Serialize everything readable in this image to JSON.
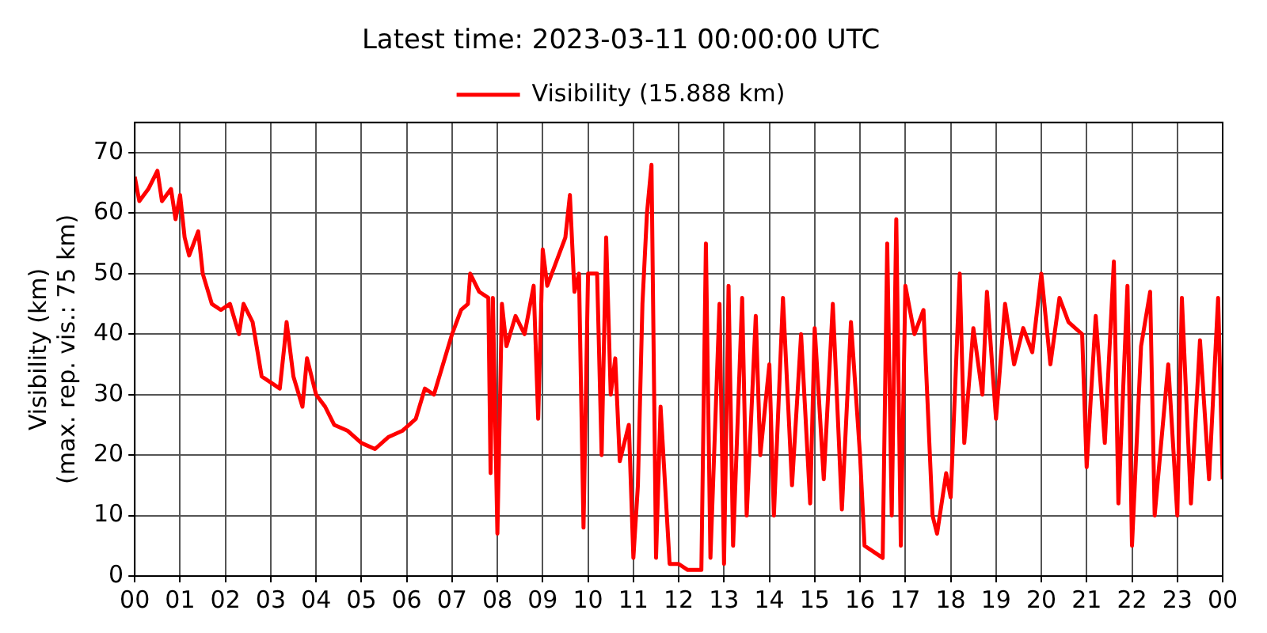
{
  "chart_data": {
    "type": "line",
    "title": "Latest time: 2023-03-11 00:00:00 UTC",
    "ylabel": "Visibility (km)\n(max. rep. vis.: 75 km)",
    "xlim": [
      0,
      24
    ],
    "ylim": [
      0,
      75
    ],
    "xticks": [
      {
        "value": 0,
        "label": "00"
      },
      {
        "value": 1,
        "label": "01"
      },
      {
        "value": 2,
        "label": "02"
      },
      {
        "value": 3,
        "label": "03"
      },
      {
        "value": 4,
        "label": "04"
      },
      {
        "value": 5,
        "label": "05"
      },
      {
        "value": 6,
        "label": "06"
      },
      {
        "value": 7,
        "label": "07"
      },
      {
        "value": 8,
        "label": "08"
      },
      {
        "value": 9,
        "label": "09"
      },
      {
        "value": 10,
        "label": "10"
      },
      {
        "value": 11,
        "label": "11"
      },
      {
        "value": 12,
        "label": "12"
      },
      {
        "value": 13,
        "label": "13"
      },
      {
        "value": 14,
        "label": "14"
      },
      {
        "value": 15,
        "label": "15"
      },
      {
        "value": 16,
        "label": "16"
      },
      {
        "value": 17,
        "label": "17"
      },
      {
        "value": 18,
        "label": "18"
      },
      {
        "value": 19,
        "label": "19"
      },
      {
        "value": 20,
        "label": "20"
      },
      {
        "value": 21,
        "label": "21"
      },
      {
        "value": 22,
        "label": "22"
      },
      {
        "value": 23,
        "label": "23"
      },
      {
        "value": 24,
        "label": "00"
      }
    ],
    "yticks": [
      0,
      10,
      20,
      30,
      40,
      50,
      60,
      70
    ],
    "grid": true,
    "legend": "top",
    "marker": "none",
    "line_style": "solid",
    "x": [
      0,
      0.1,
      0.3,
      0.5,
      0.6,
      0.8,
      0.9,
      1.0,
      1.1,
      1.2,
      1.4,
      1.5,
      1.7,
      1.9,
      2.1,
      2.3,
      2.4,
      2.6,
      2.8,
      3.0,
      3.2,
      3.3,
      3.35,
      3.5,
      3.7,
      3.8,
      4.0,
      4.2,
      4.4,
      4.7,
      5.0,
      5.3,
      5.6,
      5.9,
      6.2,
      6.4,
      6.6,
      6.8,
      7.0,
      7.2,
      7.35,
      7.4,
      7.6,
      7.8,
      7.85,
      7.9,
      8.0,
      8.1,
      8.2,
      8.4,
      8.6,
      8.8,
      8.9,
      9.0,
      9.1,
      9.3,
      9.5,
      9.6,
      9.7,
      9.8,
      9.9,
      10.0,
      10.2,
      10.3,
      10.4,
      10.5,
      10.6,
      10.7,
      10.9,
      11.0,
      11.1,
      11.2,
      11.3,
      11.4,
      11.5,
      11.6,
      11.8,
      12.0,
      12.2,
      12.5,
      12.6,
      12.7,
      12.9,
      13.0,
      13.1,
      13.2,
      13.4,
      13.5,
      13.7,
      13.8,
      14.0,
      14.1,
      14.3,
      14.5,
      14.7,
      14.9,
      15.0,
      15.2,
      15.4,
      15.6,
      15.8,
      16.0,
      16.1,
      16.3,
      16.5,
      16.6,
      16.7,
      16.8,
      16.9,
      17.0,
      17.2,
      17.4,
      17.6,
      17.7,
      17.9,
      18.0,
      18.2,
      18.3,
      18.5,
      18.7,
      18.8,
      19.0,
      19.2,
      19.4,
      19.6,
      19.8,
      20.0,
      20.2,
      20.4,
      20.6,
      20.9,
      21.0,
      21.2,
      21.4,
      21.6,
      21.7,
      21.9,
      22.0,
      22.2,
      22.4,
      22.5,
      22.8,
      23.0,
      23.1,
      23.3,
      23.5,
      23.7,
      23.9,
      24.0
    ],
    "series": [
      {
        "name": "Visibility (15.888 km)",
        "color": "#ff0000",
        "values": [
          66,
          62,
          64,
          67,
          62,
          64,
          59,
          63,
          56,
          53,
          57,
          50,
          45,
          44,
          45,
          40,
          45,
          42,
          33,
          32,
          31,
          38,
          42,
          33,
          28,
          36,
          30,
          28,
          25,
          24,
          22,
          21,
          23,
          24,
          26,
          31,
          30,
          35,
          40,
          44,
          45,
          50,
          47,
          46,
          17,
          46,
          7,
          45,
          38,
          43,
          40,
          48,
          26,
          54,
          48,
          52,
          56,
          63,
          47,
          50,
          8,
          50,
          50,
          20,
          56,
          30,
          36,
          19,
          25,
          3,
          15,
          45,
          60,
          68,
          3,
          28,
          2,
          2,
          1,
          1,
          55,
          3,
          45,
          2,
          48,
          5,
          46,
          10,
          43,
          20,
          35,
          10,
          46,
          15,
          40,
          12,
          41,
          16,
          45,
          11,
          42,
          20,
          5,
          4,
          3,
          55,
          10,
          59,
          5,
          48,
          40,
          44,
          10,
          7,
          17,
          13,
          50,
          22,
          41,
          30,
          47,
          26,
          45,
          35,
          41,
          37,
          50,
          35,
          46,
          42,
          40,
          18,
          43,
          22,
          52,
          12,
          48,
          5,
          38,
          47,
          10,
          35,
          10,
          46,
          12,
          39,
          16,
          46,
          16
        ]
      }
    ]
  }
}
